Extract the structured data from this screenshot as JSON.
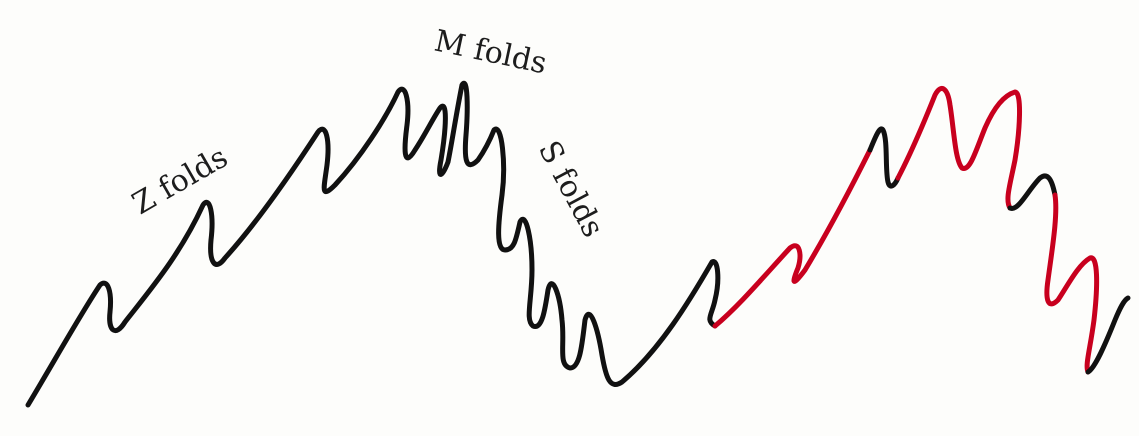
{
  "labels": {
    "z_folds": "Z folds",
    "m_folds": "M folds",
    "s_folds": "S folds"
  },
  "colors": {
    "background": "#fdfdfb",
    "fold_line": "#111111",
    "highlight": "#c8001e",
    "text": "#1d1d1d"
  }
}
